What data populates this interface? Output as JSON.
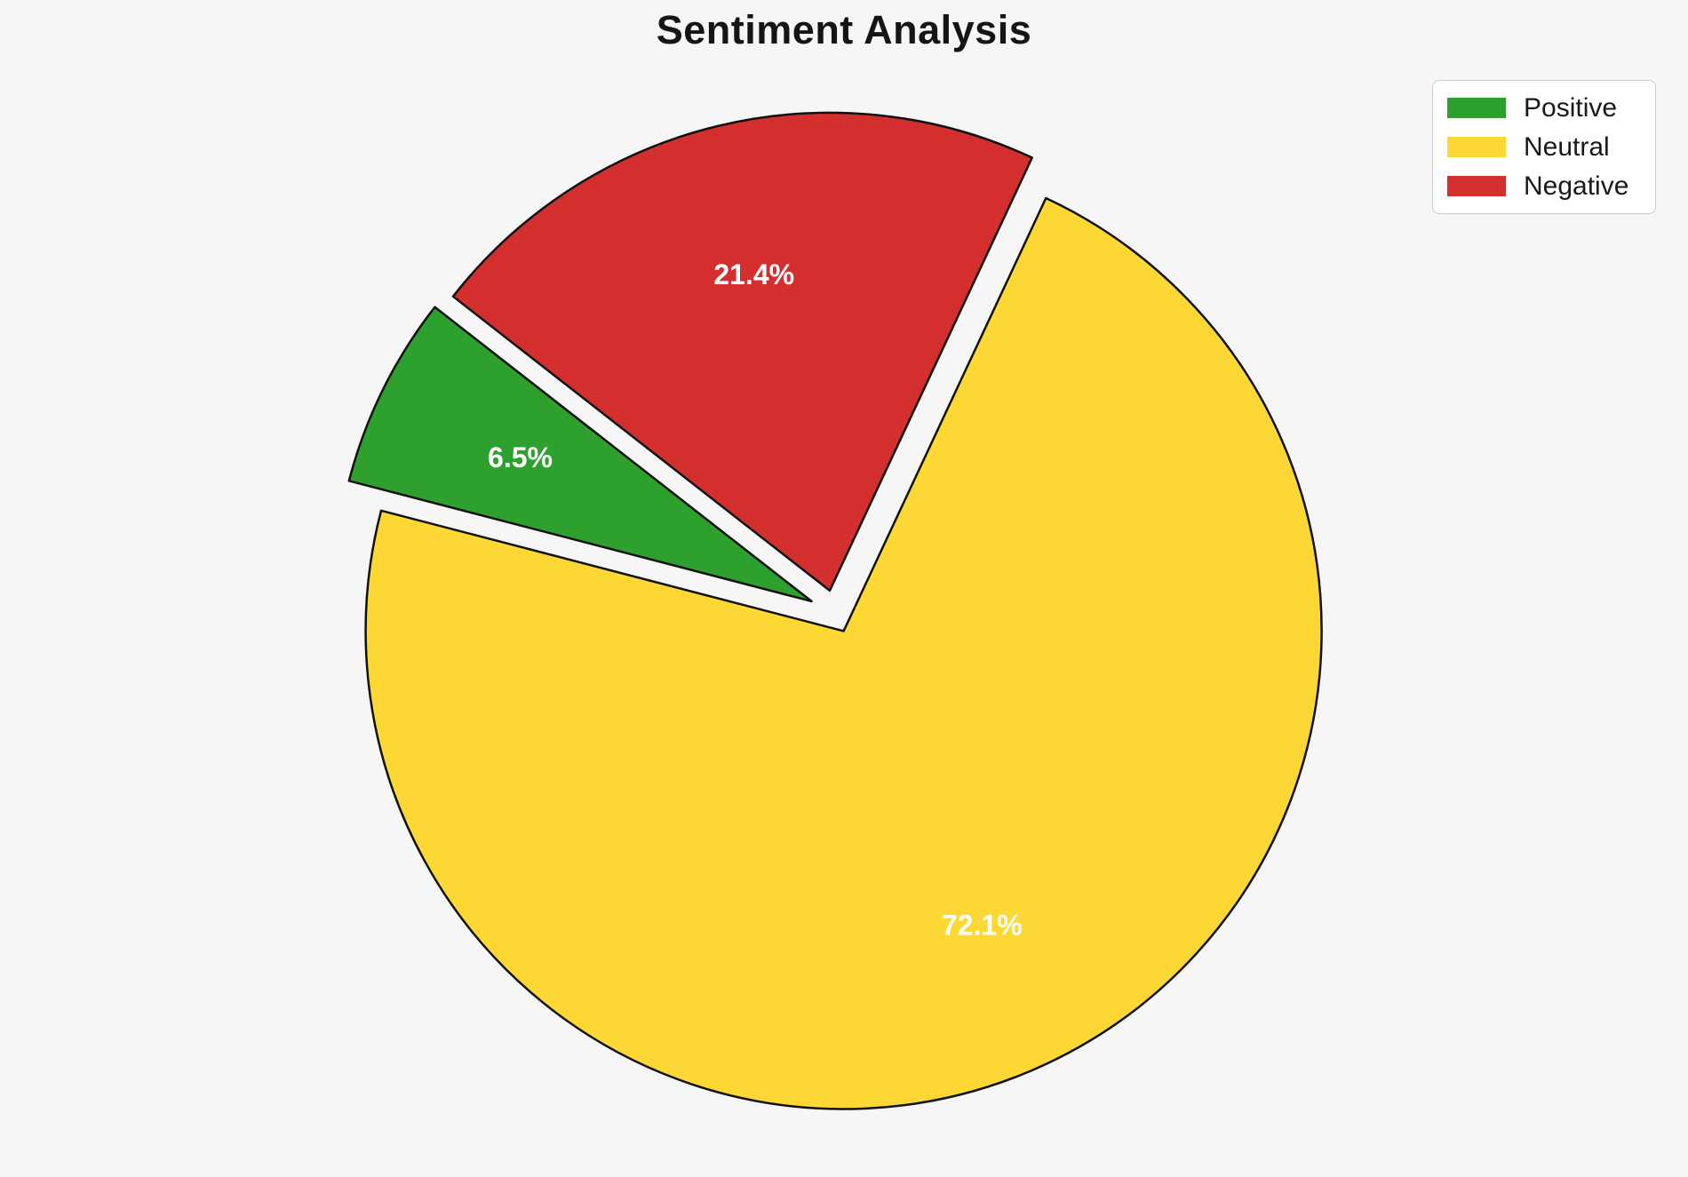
{
  "title": "Sentiment Analysis",
  "background_color": "#F6F6F6",
  "legend": {
    "position": "top-right",
    "items": [
      {
        "label": "Positive",
        "color": "#2DA02D"
      },
      {
        "label": "Neutral",
        "color": "#FDD835"
      },
      {
        "label": "Negative",
        "color": "#D32F2F"
      }
    ]
  },
  "chart_data": {
    "type": "pie",
    "title": "Sentiment Analysis",
    "labels": [
      "Positive",
      "Neutral",
      "Negative"
    ],
    "values": [
      6.5,
      72.1,
      21.4
    ],
    "pct_labels": [
      "6.5%",
      "72.1%",
      "21.4%"
    ],
    "colors": [
      "#2DA02D",
      "#FDD835",
      "#D32F2F"
    ],
    "explode": [
      0.055,
      0.042,
      0.048
    ],
    "start_angle": 142,
    "counterclockwise": true,
    "edge_color": "#111111",
    "pct_label_color": "#FFFFFF",
    "legend_position": "upper-right",
    "grid": false
  }
}
